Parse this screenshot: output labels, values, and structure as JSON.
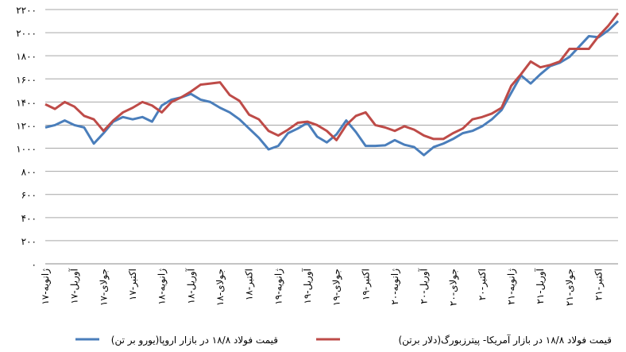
{
  "chart_data": {
    "type": "line",
    "categories": [
      "ژانویه-۱۷",
      null,
      null,
      "آوریل-۱۷",
      null,
      null,
      "جولای-۱۷",
      null,
      null,
      "اکتبر-۱۷",
      null,
      null,
      "ژانویه-۱۸",
      null,
      null,
      "آوریل-۱۸",
      null,
      null,
      "جولای-۱۸",
      null,
      null,
      "اکتبر-۱۸",
      null,
      null,
      "ژانویه-۱۹",
      null,
      null,
      "آوریل-۱۹",
      null,
      null,
      "جولای-۱۹",
      null,
      null,
      "اکتبر-۱۹",
      null,
      null,
      "ژانویه-۲۰",
      null,
      null,
      "آوریل-۲۰",
      null,
      null,
      "جولای-۲۰",
      null,
      null,
      "اکتبر-۲۰",
      null,
      null,
      "ژانویه-۲۱",
      null,
      null,
      "آوریل-۲۱",
      null,
      null,
      "جولای-۲۱",
      null,
      null,
      "اکتبر-۲۱",
      null,
      null
    ],
    "series": [
      {
        "name": "قیمت فولاد ۱۸/۸ در بازار اروپا(یورو بر تن)",
        "color": "#4a7ebb",
        "values": [
          1180,
          1200,
          1240,
          1200,
          1180,
          1040,
          1130,
          1230,
          1270,
          1250,
          1270,
          1230,
          1370,
          1420,
          1440,
          1470,
          1420,
          1400,
          1350,
          1310,
          1250,
          1170,
          1090,
          990,
          1020,
          1130,
          1170,
          1220,
          1100,
          1050,
          1120,
          1240,
          1140,
          1020,
          1020,
          1025,
          1070,
          1030,
          1010,
          940,
          1010,
          1040,
          1080,
          1130,
          1150,
          1190,
          1250,
          1330,
          1480,
          1630,
          1560,
          1640,
          1710,
          1740,
          1790,
          1880,
          1970,
          1960,
          2020,
          2100
        ]
      },
      {
        "name": "قیمت فولاد ۱۸/۸ در بازار آمریکا- پیترزبورگ(دلار برتن)",
        "color": "#be4b48",
        "values": [
          1380,
          1340,
          1400,
          1360,
          1280,
          1250,
          1150,
          1240,
          1310,
          1350,
          1400,
          1370,
          1310,
          1400,
          1440,
          1490,
          1550,
          1560,
          1570,
          1460,
          1410,
          1290,
          1250,
          1150,
          1110,
          1160,
          1220,
          1230,
          1200,
          1150,
          1070,
          1200,
          1280,
          1310,
          1200,
          1180,
          1150,
          1190,
          1160,
          1110,
          1080,
          1080,
          1130,
          1170,
          1250,
          1270,
          1300,
          1350,
          1540,
          1640,
          1750,
          1700,
          1720,
          1750,
          1860,
          1860,
          1860,
          1970,
          2060,
          2170
        ]
      }
    ],
    "ylim": [
      0,
      2200
    ],
    "yticks": [
      {
        "value": 0,
        "label": "۰"
      },
      {
        "value": 200,
        "label": "۲۰۰"
      },
      {
        "value": 400,
        "label": "۴۰۰"
      },
      {
        "value": 600,
        "label": "۶۰۰"
      },
      {
        "value": 800,
        "label": "۸۰۰"
      },
      {
        "value": 1000,
        "label": "۱۰۰۰"
      },
      {
        "value": 1200,
        "label": "۱۲۰۰"
      },
      {
        "value": 1400,
        "label": "۱۴۰۰"
      },
      {
        "value": 1600,
        "label": "۱۶۰۰"
      },
      {
        "value": 1800,
        "label": "۱۸۰۰"
      },
      {
        "value": 2000,
        "label": "۲۰۰۰"
      },
      {
        "value": 2200,
        "label": "۲۲۰۰"
      }
    ],
    "grid": true
  }
}
